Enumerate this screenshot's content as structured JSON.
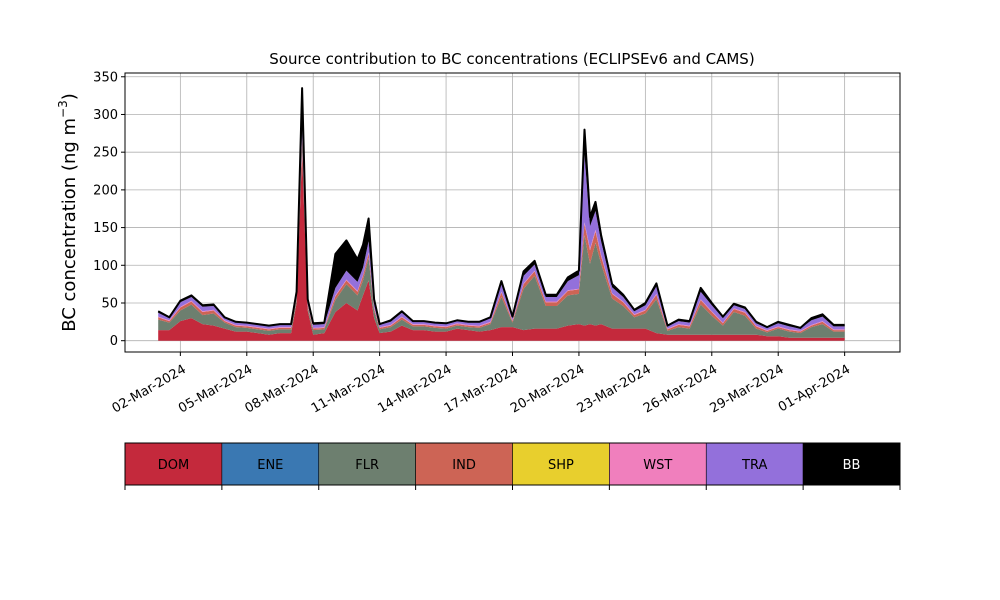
{
  "chart_data": {
    "type": "area",
    "stacked": true,
    "title": "Source contribution to BC concentrations (ECLIPSEv6 and CAMS)",
    "ylabel": "BC concentration (ng m",
    "ylabel_superscript": "−3",
    "ylabel_suffix": ")",
    "xlabel": "",
    "ylim": [
      -15,
      355
    ],
    "xlim": [
      "2024-02-28T12:00",
      "2024-04-03T12:00"
    ],
    "yticks": [
      0,
      50,
      100,
      150,
      200,
      250,
      300,
      350
    ],
    "xticks": [
      "2024-03-02",
      "2024-03-05",
      "2024-03-08",
      "2024-03-11",
      "2024-03-14",
      "2024-03-17",
      "2024-03-20",
      "2024-03-23",
      "2024-03-26",
      "2024-03-29",
      "2024-04-01"
    ],
    "xtick_labels": [
      "02-Mar-2024",
      "05-Mar-2024",
      "08-Mar-2024",
      "11-Mar-2024",
      "14-Mar-2024",
      "17-Mar-2024",
      "20-Mar-2024",
      "23-Mar-2024",
      "26-Mar-2024",
      "29-Mar-2024",
      "01-Apr-2024"
    ],
    "grid": true,
    "x": [
      "2024-03-01T00:00",
      "2024-03-01T12:00",
      "2024-03-02T00:00",
      "2024-03-02T12:00",
      "2024-03-03T00:00",
      "2024-03-03T12:00",
      "2024-03-04T00:00",
      "2024-03-04T12:00",
      "2024-03-05T00:00",
      "2024-03-05T12:00",
      "2024-03-06T00:00",
      "2024-03-06T12:00",
      "2024-03-07T00:00",
      "2024-03-07T06:00",
      "2024-03-07T12:00",
      "2024-03-07T18:00",
      "2024-03-08T00:00",
      "2024-03-08T12:00",
      "2024-03-09T00:00",
      "2024-03-09T12:00",
      "2024-03-10T00:00",
      "2024-03-10T06:00",
      "2024-03-10T12:00",
      "2024-03-10T18:00",
      "2024-03-11T00:00",
      "2024-03-11T12:00",
      "2024-03-12T00:00",
      "2024-03-12T12:00",
      "2024-03-13T00:00",
      "2024-03-13T12:00",
      "2024-03-14T00:00",
      "2024-03-14T12:00",
      "2024-03-15T00:00",
      "2024-03-15T12:00",
      "2024-03-16T00:00",
      "2024-03-16T12:00",
      "2024-03-17T00:00",
      "2024-03-17T12:00",
      "2024-03-18T00:00",
      "2024-03-18T12:00",
      "2024-03-19T00:00",
      "2024-03-19T12:00",
      "2024-03-20T00:00",
      "2024-03-20T06:00",
      "2024-03-20T12:00",
      "2024-03-20T18:00",
      "2024-03-21T00:00",
      "2024-03-21T12:00",
      "2024-03-22T00:00",
      "2024-03-22T12:00",
      "2024-03-23T00:00",
      "2024-03-23T12:00",
      "2024-03-24T00:00",
      "2024-03-24T12:00",
      "2024-03-25T00:00",
      "2024-03-25T12:00",
      "2024-03-26T00:00",
      "2024-03-26T12:00",
      "2024-03-27T00:00",
      "2024-03-27T12:00",
      "2024-03-28T00:00",
      "2024-03-28T12:00",
      "2024-03-29T00:00",
      "2024-03-29T12:00",
      "2024-03-30T00:00",
      "2024-03-30T12:00",
      "2024-03-31T00:00",
      "2024-03-31T12:00",
      "2024-04-01T00:00"
    ],
    "series": [
      {
        "name": "DOM",
        "color": "#c4293c",
        "values": [
          14,
          14,
          26,
          30,
          22,
          20,
          16,
          12,
          12,
          10,
          8,
          10,
          10,
          50,
          250,
          40,
          8,
          10,
          38,
          50,
          40,
          60,
          80,
          30,
          10,
          12,
          20,
          14,
          14,
          12,
          12,
          16,
          14,
          12,
          14,
          18,
          18,
          14,
          16,
          16,
          16,
          20,
          22,
          20,
          22,
          20,
          22,
          16,
          16,
          16,
          16,
          10,
          8,
          8,
          8,
          8,
          8,
          8,
          8,
          8,
          8,
          6,
          6,
          4,
          4,
          4,
          4,
          4,
          4
        ]
      },
      {
        "name": "ENE",
        "color": "#3a78b2",
        "values": [
          0,
          0,
          0,
          0,
          0,
          0,
          0,
          0,
          0,
          0,
          0,
          0,
          0,
          0,
          0,
          0,
          0,
          0,
          0,
          0,
          0,
          0,
          0,
          0,
          0,
          0,
          0,
          0,
          0,
          0,
          0,
          0,
          0,
          0,
          0,
          0,
          0,
          0,
          0,
          0,
          0,
          0,
          0,
          0,
          0,
          0,
          0,
          0,
          0,
          0,
          0,
          0,
          0,
          0,
          0,
          0,
          0,
          0,
          0,
          0,
          0,
          0,
          0,
          0,
          0,
          0,
          0,
          0,
          0
        ]
      },
      {
        "name": "FLR",
        "color": "#6d7f6f",
        "values": [
          14,
          10,
          14,
          18,
          12,
          16,
          8,
          6,
          5,
          5,
          5,
          5,
          5,
          4,
          10,
          4,
          6,
          5,
          16,
          25,
          20,
          20,
          30,
          10,
          5,
          6,
          8,
          5,
          5,
          5,
          4,
          4,
          4,
          5,
          8,
          40,
          6,
          55,
          70,
          30,
          30,
          40,
          40,
          120,
          80,
          110,
          80,
          40,
          30,
          15,
          20,
          45,
          5,
          10,
          8,
          40,
          25,
          12,
          30,
          25,
          8,
          5,
          10,
          8,
          6,
          14,
          18,
          8,
          8
        ]
      },
      {
        "name": "IND",
        "color": "#cd6455",
        "values": [
          3,
          2,
          4,
          4,
          4,
          4,
          2,
          2,
          2,
          2,
          2,
          2,
          2,
          3,
          8,
          3,
          2,
          2,
          5,
          5,
          5,
          6,
          6,
          3,
          2,
          2,
          3,
          2,
          2,
          2,
          2,
          2,
          2,
          2,
          2,
          6,
          2,
          6,
          6,
          5,
          5,
          6,
          6,
          15,
          18,
          15,
          10,
          6,
          5,
          3,
          4,
          6,
          2,
          3,
          3,
          6,
          5,
          3,
          4,
          4,
          3,
          2,
          2,
          2,
          2,
          2,
          3,
          2,
          2
        ]
      },
      {
        "name": "SHP",
        "color": "#e8cf2d",
        "values": [
          0,
          0,
          0,
          0,
          0,
          0,
          0,
          0,
          0,
          0,
          0,
          0,
          0,
          0,
          0,
          0,
          0,
          0,
          0,
          0,
          0,
          0,
          0,
          0,
          0,
          0,
          0,
          0,
          0,
          0,
          0,
          0,
          0,
          0,
          0,
          0,
          0,
          0,
          0,
          0,
          0,
          0,
          0,
          0,
          0,
          0,
          0,
          0,
          0,
          0,
          0,
          0,
          0,
          0,
          0,
          0,
          0,
          0,
          0,
          0,
          0,
          0,
          0,
          0,
          0,
          0,
          0,
          0,
          0
        ]
      },
      {
        "name": "WST",
        "color": "#f07fbd",
        "values": [
          1,
          1,
          1,
          1,
          1,
          1,
          1,
          1,
          1,
          1,
          1,
          1,
          1,
          1,
          2,
          1,
          1,
          1,
          1,
          1,
          1,
          1,
          1,
          1,
          1,
          1,
          1,
          1,
          1,
          1,
          1,
          1,
          1,
          1,
          1,
          1,
          1,
          1,
          1,
          1,
          1,
          1,
          1,
          2,
          2,
          2,
          2,
          1,
          1,
          1,
          1,
          1,
          1,
          1,
          1,
          1,
          1,
          1,
          1,
          1,
          1,
          1,
          1,
          1,
          1,
          1,
          1,
          1,
          1
        ]
      },
      {
        "name": "TRA",
        "color": "#9370db",
        "values": [
          5,
          3,
          6,
          5,
          6,
          5,
          3,
          3,
          3,
          3,
          3,
          3,
          3,
          5,
          10,
          5,
          4,
          4,
          10,
          12,
          12,
          10,
          15,
          6,
          3,
          4,
          5,
          3,
          3,
          3,
          3,
          3,
          3,
          4,
          5,
          10,
          4,
          10,
          8,
          6,
          6,
          12,
          18,
          90,
          30,
          25,
          18,
          8,
          6,
          4,
          6,
          10,
          3,
          4,
          4,
          10,
          8,
          6,
          4,
          4,
          3,
          3,
          4,
          4,
          3,
          6,
          6,
          4,
          4
        ]
      },
      {
        "name": "BB",
        "color": "#000000",
        "values": [
          2,
          1,
          2,
          2,
          2,
          2,
          1,
          1,
          1,
          1,
          1,
          1,
          1,
          2,
          55,
          2,
          2,
          2,
          45,
          40,
          30,
          30,
          30,
          5,
          1,
          2,
          2,
          1,
          1,
          1,
          1,
          1,
          1,
          1,
          1,
          4,
          1,
          6,
          5,
          3,
          3,
          5,
          6,
          33,
          12,
          12,
          8,
          4,
          3,
          2,
          3,
          4,
          1,
          2,
          2,
          5,
          3,
          2,
          2,
          2,
          2,
          1,
          2,
          2,
          1,
          3,
          3,
          2,
          2
        ]
      }
    ],
    "legend": {
      "placement": "below",
      "entries": [
        {
          "label": "DOM",
          "color": "#c4293c",
          "text_color": "#000000"
        },
        {
          "label": "ENE",
          "color": "#3a78b2",
          "text_color": "#000000"
        },
        {
          "label": "FLR",
          "color": "#6d7f6f",
          "text_color": "#000000"
        },
        {
          "label": "IND",
          "color": "#cd6455",
          "text_color": "#000000"
        },
        {
          "label": "SHP",
          "color": "#e8cf2d",
          "text_color": "#000000"
        },
        {
          "label": "WST",
          "color": "#f07fbd",
          "text_color": "#000000"
        },
        {
          "label": "TRA",
          "color": "#9370db",
          "text_color": "#000000"
        },
        {
          "label": "BB",
          "color": "#000000",
          "text_color": "#ffffff"
        }
      ]
    }
  }
}
